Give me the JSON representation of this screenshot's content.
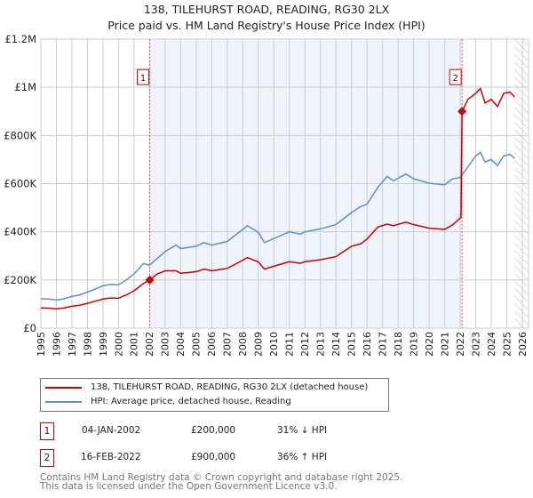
{
  "title": "138, TILEHURST ROAD, READING, RG30 2LX",
  "subtitle": "Price paid vs. HM Land Registry's House Price Index (HPI)",
  "chart_data": {
    "type": "line",
    "title": "138, TILEHURST ROAD, READING, RG30 2LX",
    "subtitle": "Price paid vs. HM Land Registry's House Price Index (HPI)",
    "xlim": [
      1995,
      2026.4
    ],
    "ylim": [
      0,
      1200000
    ],
    "x_ticks": [
      "1995",
      "1996",
      "1997",
      "1998",
      "1999",
      "2000",
      "2001",
      "2002",
      "2003",
      "2004",
      "2005",
      "2006",
      "2007",
      "2008",
      "2009",
      "2010",
      "2011",
      "2012",
      "2013",
      "2014",
      "2015",
      "2016",
      "2017",
      "2018",
      "2019",
      "2020",
      "2021",
      "2022",
      "2023",
      "2024",
      "2025",
      "2026"
    ],
    "y_ticks": [
      {
        "v": 0,
        "label": "£0"
      },
      {
        "v": 200000,
        "label": "£200K"
      },
      {
        "v": 400000,
        "label": "£400K"
      },
      {
        "v": 600000,
        "label": "£600K"
      },
      {
        "v": 800000,
        "label": "£800K"
      },
      {
        "v": 1000000,
        "label": "£1M"
      },
      {
        "v": 1200000,
        "label": "£1.2M"
      }
    ],
    "grid": true,
    "colors": {
      "price": "#cc0000",
      "hpi": "#5b8fd0",
      "shade": "#eef3fc"
    },
    "hpi": {
      "name": "HPI: Average price, detached house, Reading",
      "x": [
        1995,
        1995.5,
        1996,
        1996.5,
        1997,
        1997.5,
        1998,
        1998.5,
        1999,
        1999.5,
        2000,
        2000.5,
        2001,
        2001.6,
        2002,
        2002.5,
        2003,
        2003.7,
        2004,
        2005,
        2005.5,
        2006,
        2007,
        2007.5,
        2008.3,
        2009,
        2009.4,
        2010,
        2011,
        2011.7,
        2012,
        2013,
        2014,
        2015,
        2015.6,
        2016,
        2016.7,
        2017.3,
        2017.7,
        2018.5,
        2019,
        2020,
        2021,
        2021.5,
        2022,
        2022.5,
        2023,
        2023.3,
        2023.6,
        2024,
        2024.4,
        2024.8,
        2025.2,
        2025.5
      ],
      "values": [
        122000,
        121000,
        117000,
        122000,
        132000,
        138000,
        150000,
        162000,
        176000,
        182000,
        180000,
        200000,
        225000,
        268000,
        262000,
        290000,
        318000,
        345000,
        330000,
        340000,
        355000,
        345000,
        360000,
        385000,
        425000,
        398000,
        355000,
        372000,
        400000,
        390000,
        400000,
        412000,
        430000,
        480000,
        505000,
        515000,
        585000,
        630000,
        612000,
        640000,
        620000,
        602000,
        595000,
        620000,
        625000,
        670000,
        715000,
        730000,
        690000,
        700000,
        675000,
        715000,
        722000,
        705000
      ]
    },
    "price": {
      "name": "138, TILEHURST ROAD, READING, RG30 2LX (detached house)",
      "x": [
        1995,
        1995.5,
        1996,
        1996.5,
        1997,
        1997.5,
        1998,
        1998.5,
        1999,
        1999.5,
        2000,
        2000.5,
        2001,
        2001.6,
        2002,
        2002.5,
        2003,
        2003.7,
        2004,
        2005,
        2005.5,
        2006,
        2007,
        2007.5,
        2008.3,
        2009,
        2009.4,
        2010,
        2011,
        2011.7,
        2012,
        2013,
        2014,
        2015,
        2015.6,
        2016,
        2016.7,
        2017.3,
        2017.7,
        2018.5,
        2019,
        2020,
        2021,
        2021.5,
        2022.05,
        2022.12,
        2022.5,
        2023,
        2023.3,
        2023.6,
        2024,
        2024.4,
        2024.8,
        2025.2,
        2025.5
      ],
      "values": [
        84000,
        83000,
        80000,
        84000,
        91000,
        95000,
        103000,
        112000,
        121000,
        125000,
        124000,
        138000,
        155000,
        185000,
        200000,
        225000,
        238000,
        238000,
        228000,
        234000,
        245000,
        238000,
        248000,
        265000,
        293000,
        275000,
        245000,
        257000,
        276000,
        269000,
        276000,
        284000,
        297000,
        340000,
        350000,
        370000,
        420000,
        432000,
        425000,
        440000,
        430000,
        415000,
        410000,
        428000,
        460000,
        900000,
        950000,
        975000,
        995000,
        935000,
        950000,
        920000,
        975000,
        980000,
        960000
      ]
    },
    "annotations": [
      {
        "label": "1",
        "x": 2002.01,
        "y": 200000
      },
      {
        "label": "2",
        "x": 2022.12,
        "y": 900000
      }
    ]
  },
  "legend": {
    "price": "138, TILEHURST ROAD, READING, RG30 2LX (detached house)",
    "hpi": "HPI: Average price, detached house, Reading"
  },
  "transactions": [
    {
      "num": "1",
      "date": "04-JAN-2002",
      "price": "£200,000",
      "hpi": "31% ↓ HPI"
    },
    {
      "num": "2",
      "date": "16-FEB-2022",
      "price": "£900,000",
      "hpi": "36% ↑ HPI"
    }
  ],
  "footer": [
    "Contains HM Land Registry data © Crown copyright and database right 2025.",
    "This data is licensed under the Open Government Licence v3.0."
  ]
}
